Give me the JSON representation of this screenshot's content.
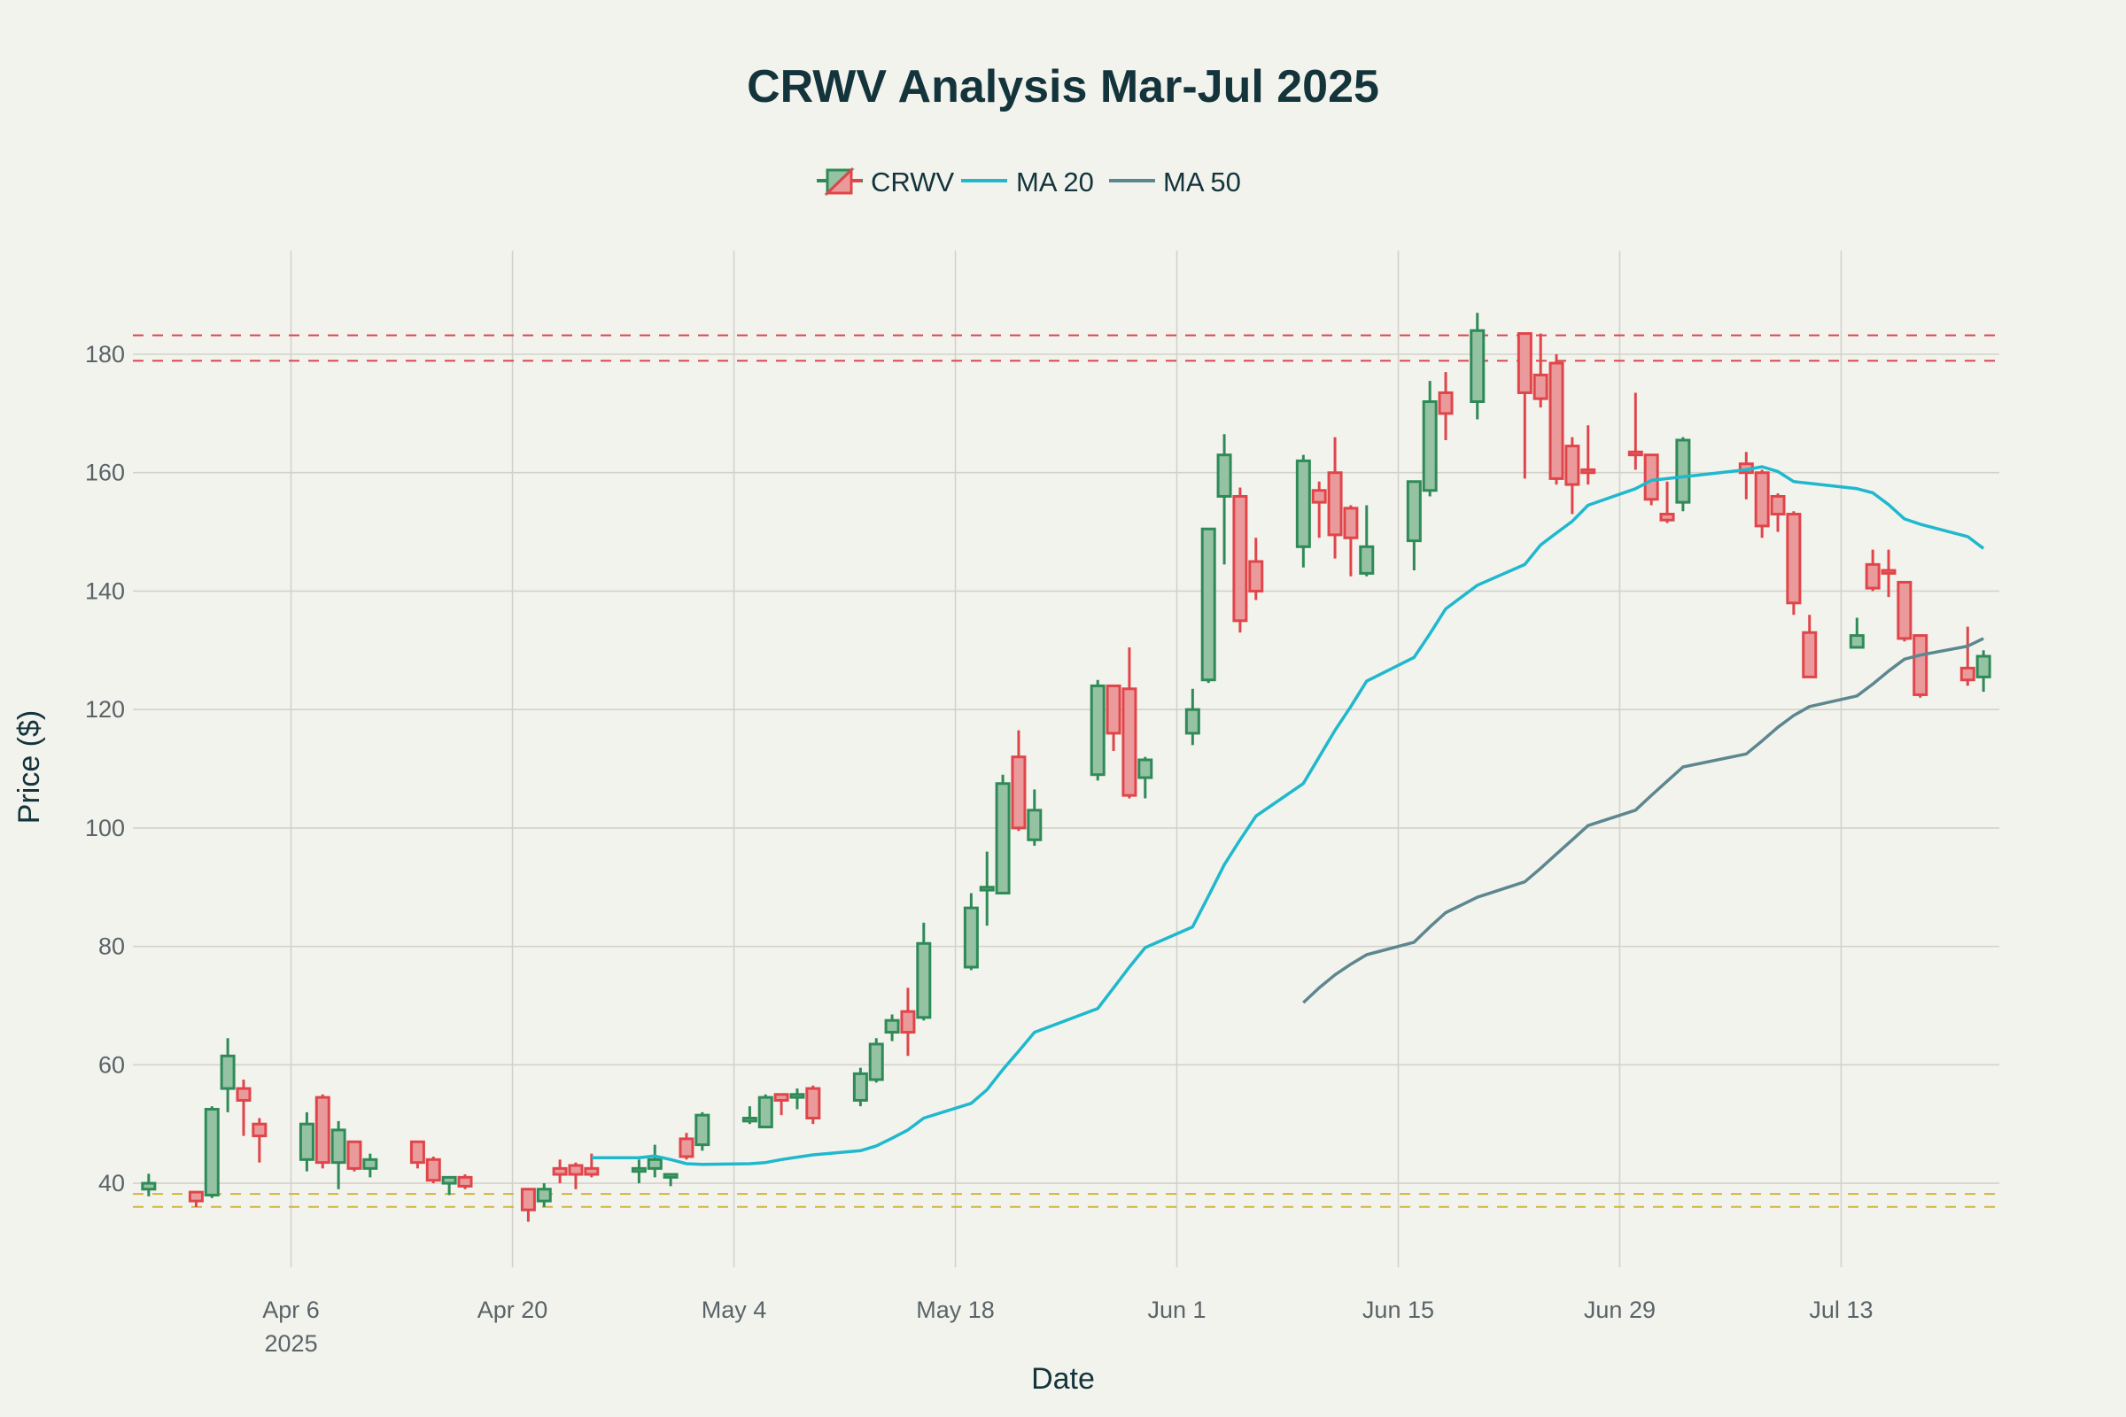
{
  "chart_data": {
    "type": "candlestick",
    "title": "CRWV Analysis Mar-Jul 2025",
    "xlabel": "Date",
    "ylabel": "Price ($)",
    "ylim": [
      25.8,
      197.5
    ],
    "xlim": [
      "2025-03-27",
      "2025-07-23"
    ],
    "grid": true,
    "legend_placement": "top-center",
    "legend": [
      {
        "name": "CRWV",
        "kind": "candle"
      },
      {
        "name": "MA 20",
        "kind": "line",
        "color": "#1fb8cd"
      },
      {
        "name": "MA 50",
        "kind": "line",
        "color": "#5d878f"
      }
    ],
    "colors": {
      "up": "#2e8b57",
      "up_fill": "#94c2a3",
      "down": "#e0454a",
      "down_fill": "#eb9a9c",
      "ma20": "#1fb8cd",
      "ma50": "#5d878f",
      "resistance": "#d9464b",
      "support": "#d4b43c"
    },
    "y_ticks": [
      40,
      60,
      80,
      100,
      120,
      140,
      160,
      180
    ],
    "x_ticks": [
      {
        "date": "2025-04-06",
        "label": "Apr 6",
        "sub": "2025"
      },
      {
        "date": "2025-04-20",
        "label": "Apr 20"
      },
      {
        "date": "2025-05-04",
        "label": "May 4"
      },
      {
        "date": "2025-05-18",
        "label": "May 18"
      },
      {
        "date": "2025-06-01",
        "label": "Jun 1"
      },
      {
        "date": "2025-06-15",
        "label": "Jun 15"
      },
      {
        "date": "2025-06-29",
        "label": "Jun 29"
      },
      {
        "date": "2025-07-13",
        "label": "Jul 13"
      }
    ],
    "hlines": [
      {
        "value": 183.2,
        "kind": "resistance"
      },
      {
        "value": 178.9,
        "kind": "resistance"
      },
      {
        "value": 38.2,
        "kind": "support"
      },
      {
        "value": 36.0,
        "kind": "support"
      }
    ],
    "ohlc_columns": [
      "date",
      "open",
      "high",
      "low",
      "close"
    ],
    "ohlc": [
      [
        "2025-03-28",
        39,
        41.6,
        37.8,
        40
      ],
      [
        "2025-03-31",
        38.5,
        38.7,
        36,
        37
      ],
      [
        "2025-04-01",
        38,
        53,
        37.5,
        52.5
      ],
      [
        "2025-04-02",
        56,
        64.5,
        52,
        61.5
      ],
      [
        "2025-04-03",
        56,
        57.5,
        48,
        54
      ],
      [
        "2025-04-04",
        50,
        51,
        43.5,
        48
      ],
      [
        "2025-04-07",
        44,
        52,
        42,
        50
      ],
      [
        "2025-04-08",
        54.5,
        55,
        42.5,
        43.5
      ],
      [
        "2025-04-09",
        43.5,
        50.5,
        39,
        49
      ],
      [
        "2025-04-10",
        47,
        47,
        42,
        42.5
      ],
      [
        "2025-04-11",
        42.5,
        45,
        41,
        44
      ],
      [
        "2025-04-14",
        47,
        47,
        42.5,
        43.5
      ],
      [
        "2025-04-15",
        44,
        44.5,
        40,
        40.5
      ],
      [
        "2025-04-16",
        40,
        41,
        38,
        41
      ],
      [
        "2025-04-17",
        41,
        41.5,
        39,
        39.5
      ],
      [
        "2025-04-21",
        39,
        39,
        33.5,
        35.5
      ],
      [
        "2025-04-22",
        37,
        40,
        36,
        39
      ],
      [
        "2025-04-23",
        42.5,
        44,
        40,
        41.5
      ],
      [
        "2025-04-24",
        43,
        43.5,
        39,
        41.5
      ],
      [
        "2025-04-25",
        42.5,
        45,
        41,
        41.5
      ],
      [
        "2025-04-28",
        42,
        44,
        40,
        42.5
      ],
      [
        "2025-04-29",
        42.5,
        46.5,
        41,
        44
      ],
      [
        "2025-04-30",
        41,
        41.5,
        39.5,
        41.5
      ],
      [
        "2025-05-01",
        47.5,
        48.5,
        44,
        44.5
      ],
      [
        "2025-05-02",
        46.5,
        52,
        45.5,
        51.5
      ],
      [
        "2025-05-05",
        50.5,
        53,
        50,
        51
      ],
      [
        "2025-05-06",
        49.5,
        55,
        49.5,
        54.5
      ],
      [
        "2025-05-07",
        55,
        55,
        51.5,
        54
      ],
      [
        "2025-05-08",
        54.5,
        56,
        52.5,
        55
      ],
      [
        "2025-05-09",
        56,
        56.5,
        50,
        51
      ],
      [
        "2025-05-12",
        54,
        59.5,
        53,
        58.5
      ],
      [
        "2025-05-13",
        57.5,
        64.5,
        57,
        63.5
      ],
      [
        "2025-05-14",
        65.5,
        68.5,
        64,
        67.5
      ],
      [
        "2025-05-15",
        69,
        73,
        61.5,
        65.5
      ],
      [
        "2025-05-16",
        68,
        84,
        67.5,
        80.5
      ],
      [
        "2025-05-19",
        76.5,
        89,
        76,
        86.5
      ],
      [
        "2025-05-20",
        89.5,
        96,
        83.5,
        90
      ],
      [
        "2025-05-21",
        89,
        109,
        89,
        107.5
      ],
      [
        "2025-05-22",
        112,
        116.5,
        99.5,
        100
      ],
      [
        "2025-05-23",
        98,
        106.5,
        97,
        103
      ],
      [
        "2025-05-27",
        109,
        125,
        108,
        124
      ],
      [
        "2025-05-28",
        124,
        124,
        113,
        116
      ],
      [
        "2025-05-29",
        123.5,
        130.5,
        105,
        105.5
      ],
      [
        "2025-05-30",
        108.5,
        112,
        105,
        111.5
      ],
      [
        "2025-06-02",
        116,
        123.5,
        114,
        120
      ],
      [
        "2025-06-03",
        125,
        150.5,
        124.5,
        150.5
      ],
      [
        "2025-06-04",
        156,
        166.5,
        144.5,
        163
      ],
      [
        "2025-06-05",
        156,
        157.5,
        133,
        135
      ],
      [
        "2025-06-06",
        145,
        149,
        138.5,
        140
      ],
      [
        "2025-06-09",
        147.5,
        163,
        144,
        162
      ],
      [
        "2025-06-10",
        157,
        158.5,
        149,
        155
      ],
      [
        "2025-06-11",
        160,
        166,
        145.5,
        149.5
      ],
      [
        "2025-06-12",
        154,
        154.5,
        142.5,
        149
      ],
      [
        "2025-06-13",
        143,
        154.5,
        142.5,
        147.5
      ],
      [
        "2025-06-16",
        148.5,
        158.5,
        143.5,
        158.5
      ],
      [
        "2025-06-17",
        157,
        175.5,
        156,
        172
      ],
      [
        "2025-06-18",
        173.5,
        177,
        165.5,
        170
      ],
      [
        "2025-06-20",
        172,
        187,
        169,
        184
      ],
      [
        "2025-06-23",
        183.5,
        183.5,
        159,
        173.5
      ],
      [
        "2025-06-24",
        176.5,
        183.5,
        171,
        172.5
      ],
      [
        "2025-06-25",
        178.5,
        180,
        158,
        159
      ],
      [
        "2025-06-26",
        164.5,
        166,
        153,
        158
      ],
      [
        "2025-06-27",
        160.5,
        168,
        158,
        160
      ],
      [
        "2025-06-30",
        163.5,
        173.5,
        160.5,
        163
      ],
      [
        "2025-07-01",
        163,
        163,
        154.5,
        155.5
      ],
      [
        "2025-07-02",
        153,
        158.5,
        151.5,
        152
      ],
      [
        "2025-07-03",
        155,
        166,
        153.5,
        165.5
      ],
      [
        "2025-07-07",
        161.5,
        163.5,
        155.5,
        160
      ],
      [
        "2025-07-08",
        160,
        160.5,
        149,
        151
      ],
      [
        "2025-07-09",
        156,
        156.5,
        150,
        153
      ],
      [
        "2025-07-10",
        153,
        153.5,
        136,
        138
      ],
      [
        "2025-07-11",
        133,
        136,
        125.5,
        125.5
      ],
      [
        "2025-07-14",
        130.5,
        135.5,
        130.5,
        132.5
      ],
      [
        "2025-07-15",
        144.5,
        147,
        140,
        140.5
      ],
      [
        "2025-07-16",
        143.5,
        147,
        139,
        143
      ],
      [
        "2025-07-17",
        141.5,
        141.5,
        131.5,
        132
      ],
      [
        "2025-07-18",
        132.5,
        132.5,
        122,
        122.5
      ],
      [
        "2025-07-21",
        127,
        134,
        124,
        125
      ],
      [
        "2025-07-22",
        125.5,
        130,
        123,
        129
      ]
    ],
    "ma20": [
      [
        "2025-04-25",
        44.3
      ],
      [
        "2025-04-28",
        44.3
      ],
      [
        "2025-04-29",
        44.6
      ],
      [
        "2025-04-30",
        44.0
      ],
      [
        "2025-05-01",
        43.3
      ],
      [
        "2025-05-02",
        43.2
      ],
      [
        "2025-05-05",
        43.3
      ],
      [
        "2025-05-06",
        43.5
      ],
      [
        "2025-05-07",
        44.0
      ],
      [
        "2025-05-08",
        44.4
      ],
      [
        "2025-05-09",
        44.8
      ],
      [
        "2025-05-12",
        45.5
      ],
      [
        "2025-05-13",
        46.3
      ],
      [
        "2025-05-14",
        47.6
      ],
      [
        "2025-05-15",
        49.0
      ],
      [
        "2025-05-16",
        51.0
      ],
      [
        "2025-05-19",
        53.5
      ],
      [
        "2025-05-20",
        55.8
      ],
      [
        "2025-05-21",
        59.2
      ],
      [
        "2025-05-22",
        62.3
      ],
      [
        "2025-05-23",
        65.5
      ],
      [
        "2025-05-27",
        69.5
      ],
      [
        "2025-05-28",
        73.0
      ],
      [
        "2025-05-29",
        76.5
      ],
      [
        "2025-05-30",
        79.8
      ],
      [
        "2025-06-02",
        83.3
      ],
      [
        "2025-06-03",
        88.5
      ],
      [
        "2025-06-04",
        93.8
      ],
      [
        "2025-06-05",
        98.0
      ],
      [
        "2025-06-06",
        102.0
      ],
      [
        "2025-06-09",
        107.5
      ],
      [
        "2025-06-10",
        112.0
      ],
      [
        "2025-06-11",
        116.5
      ],
      [
        "2025-06-12",
        120.5
      ],
      [
        "2025-06-13",
        124.8
      ],
      [
        "2025-06-16",
        128.8
      ],
      [
        "2025-06-17",
        132.8
      ],
      [
        "2025-06-18",
        137.0
      ],
      [
        "2025-06-20",
        141.0
      ],
      [
        "2025-06-23",
        144.5
      ],
      [
        "2025-06-24",
        147.8
      ],
      [
        "2025-06-25",
        149.8
      ],
      [
        "2025-06-26",
        151.8
      ],
      [
        "2025-06-27",
        154.5
      ],
      [
        "2025-06-30",
        157.3
      ],
      [
        "2025-07-01",
        158.7
      ],
      [
        "2025-07-02",
        159.0
      ],
      [
        "2025-07-03",
        159.3
      ],
      [
        "2025-07-07",
        160.5
      ],
      [
        "2025-07-08",
        161.0
      ],
      [
        "2025-07-09",
        160.2
      ],
      [
        "2025-07-10",
        158.5
      ],
      [
        "2025-07-11",
        158.2
      ],
      [
        "2025-07-14",
        157.3
      ],
      [
        "2025-07-15",
        156.6
      ],
      [
        "2025-07-16",
        154.6
      ],
      [
        "2025-07-17",
        152.2
      ],
      [
        "2025-07-18",
        151.3
      ],
      [
        "2025-07-21",
        149.2
      ],
      [
        "2025-07-22",
        147.2
      ]
    ],
    "ma50": [
      [
        "2025-06-09",
        70.5
      ],
      [
        "2025-06-10",
        73.0
      ],
      [
        "2025-06-11",
        75.2
      ],
      [
        "2025-06-12",
        77.0
      ],
      [
        "2025-06-13",
        78.6
      ],
      [
        "2025-06-16",
        80.7
      ],
      [
        "2025-06-17",
        83.3
      ],
      [
        "2025-06-18",
        85.7
      ],
      [
        "2025-06-20",
        88.3
      ],
      [
        "2025-06-23",
        90.9
      ],
      [
        "2025-06-24",
        93.2
      ],
      [
        "2025-06-25",
        95.6
      ],
      [
        "2025-06-26",
        98.0
      ],
      [
        "2025-06-27",
        100.4
      ],
      [
        "2025-06-30",
        103.0
      ],
      [
        "2025-07-01",
        105.5
      ],
      [
        "2025-07-02",
        107.9
      ],
      [
        "2025-07-03",
        110.3
      ],
      [
        "2025-07-07",
        112.5
      ],
      [
        "2025-07-08",
        114.7
      ],
      [
        "2025-07-09",
        117.0
      ],
      [
        "2025-07-10",
        119.0
      ],
      [
        "2025-07-11",
        120.5
      ],
      [
        "2025-07-14",
        122.3
      ],
      [
        "2025-07-15",
        124.3
      ],
      [
        "2025-07-16",
        126.5
      ],
      [
        "2025-07-17",
        128.5
      ],
      [
        "2025-07-18",
        129.2
      ],
      [
        "2025-07-21",
        130.7
      ],
      [
        "2025-07-22",
        132.0
      ]
    ]
  }
}
